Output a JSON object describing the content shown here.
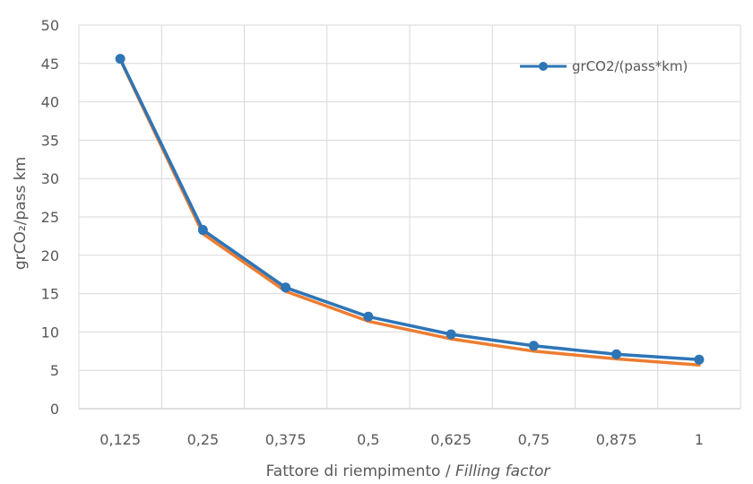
{
  "chart_data": {
    "type": "line",
    "categories": [
      "0,125",
      "0,25",
      "0,375",
      "0,5",
      "0,625",
      "0,75",
      "0,875",
      "1"
    ],
    "ylim": [
      0,
      50
    ],
    "yticks": [
      "0",
      "5",
      "10",
      "15",
      "20",
      "25",
      "30",
      "35",
      "40",
      "45",
      "50"
    ],
    "ylabel": "grCO₂/pass km",
    "xlabel": "Fattore di riempimento / ",
    "xlabel_italic": "Filling factor",
    "grid": true,
    "legend_position": "top-right",
    "series": [
      {
        "name": "grCO2/(pass*km)",
        "color": "#2E75B6",
        "markers": true,
        "values": [
          45.6,
          23.3,
          15.8,
          12.0,
          9.7,
          8.2,
          7.1,
          6.4
        ]
      },
      {
        "color": "#ED7D31",
        "markers": false,
        "values": [
          45.5,
          22.8,
          15.3,
          11.4,
          9.1,
          7.5,
          6.5,
          5.7
        ]
      }
    ]
  }
}
